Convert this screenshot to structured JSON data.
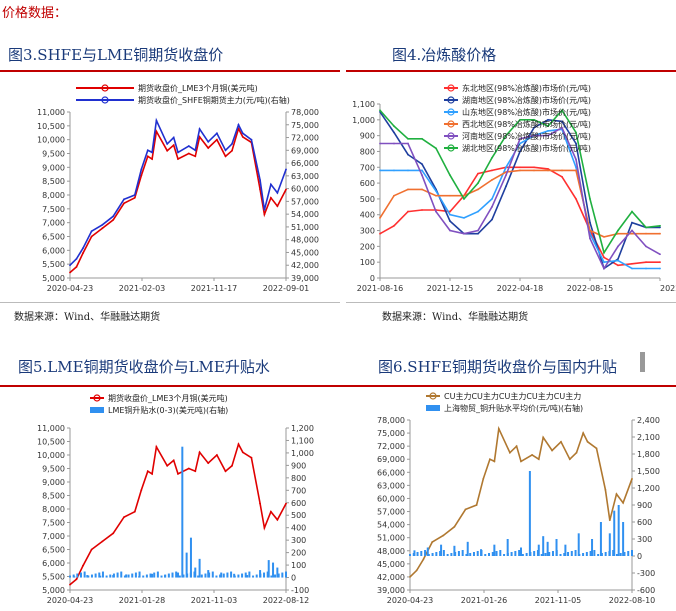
{
  "header": "价格数据：",
  "figures": [
    {
      "title": "图3.SHFE与LME铜期货收盘价",
      "source": "数据来源：Wind、华融融达期货"
    },
    {
      "title": "图4.冶炼酸价格",
      "source": "数据来源：Wind、华融融达期货"
    },
    {
      "title": "图5.LME铜期货收盘价与LME升贴水",
      "source": ""
    },
    {
      "title": "图6.SHFE铜期货收盘价与国内升贴",
      "source": ""
    }
  ],
  "chart_data": [
    {
      "type": "line",
      "x_ticks": [
        "2020-04-23",
        "2021-02-03",
        "2021-11-17",
        "2022-09-01"
      ],
      "y_ticks": [
        "5,000",
        "5,500",
        "6,000",
        "6,500",
        "7,000",
        "7,500",
        "8,000",
        "8,500",
        "9,000",
        "9,500",
        "10,000",
        "10,500",
        "11,000"
      ],
      "y2_ticks": [
        "39,000",
        "42,000",
        "45,000",
        "48,000",
        "51,000",
        "54,000",
        "57,000",
        "60,000",
        "63,000",
        "66,000",
        "69,000",
        "72,000",
        "75,000",
        "78,000"
      ],
      "ylim": [
        5000,
        11000
      ],
      "y2lim": [
        39000,
        78000
      ],
      "legend_position": "top-left",
      "colors": {
        "lme": "#e00000",
        "shfe": "#2030d0"
      },
      "series": [
        {
          "name": "期货收盘价_LME3个月铜(美元吨)",
          "color": "#e00000",
          "axis": "left",
          "x": [
            0,
            0.03,
            0.06,
            0.1,
            0.15,
            0.2,
            0.25,
            0.3,
            0.33,
            0.36,
            0.38,
            0.4,
            0.45,
            0.48,
            0.5,
            0.55,
            0.58,
            0.6,
            0.64,
            0.68,
            0.72,
            0.75,
            0.78,
            0.8,
            0.84,
            0.88,
            0.9,
            0.93,
            0.96,
            1.0
          ],
          "values": [
            5200,
            5400,
            5900,
            6500,
            6800,
            7100,
            7700,
            7900,
            8700,
            9400,
            9300,
            10300,
            9600,
            9800,
            9300,
            9500,
            9400,
            10100,
            9700,
            10000,
            9400,
            9600,
            10400,
            10100,
            9900,
            8200,
            7300,
            7900,
            7600,
            8200
          ]
        },
        {
          "name": "期货收盘价_SHFE铜期货主力(元/吨)(右轴)",
          "color": "#2030d0",
          "axis": "right",
          "x": [
            0,
            0.03,
            0.06,
            0.1,
            0.15,
            0.2,
            0.25,
            0.3,
            0.33,
            0.36,
            0.38,
            0.4,
            0.45,
            0.48,
            0.5,
            0.55,
            0.58,
            0.6,
            0.64,
            0.68,
            0.72,
            0.75,
            0.78,
            0.8,
            0.84,
            0.88,
            0.9,
            0.93,
            0.96,
            1.0
          ],
          "values": [
            42000,
            43500,
            46000,
            50000,
            51500,
            53500,
            57500,
            58500,
            64500,
            69000,
            68500,
            76000,
            70500,
            72000,
            68500,
            70000,
            69000,
            74000,
            71000,
            73000,
            69000,
            70500,
            75000,
            73000,
            71500,
            62000,
            55000,
            61000,
            59000,
            64500
          ]
        }
      ]
    },
    {
      "type": "line",
      "x_ticks": [
        "2021-08-16",
        "2021-12-15",
        "2022-04-18",
        "2022-08-15",
        "2022-12"
      ],
      "y_ticks": [
        "0",
        "100",
        "200",
        "300",
        "400",
        "500",
        "600",
        "700",
        "800",
        "900",
        "1,000",
        "1,100"
      ],
      "ylim": [
        0,
        1100
      ],
      "legend_position": "top-center",
      "series": [
        {
          "name": "东北地区(98%冶炼酸)市场价(元/吨)",
          "color": "#ff3030",
          "x": [
            0,
            0.05,
            0.1,
            0.15,
            0.2,
            0.25,
            0.3,
            0.35,
            0.4,
            0.45,
            0.5,
            0.55,
            0.6,
            0.65,
            0.7,
            0.75,
            0.8,
            0.85,
            0.9,
            0.95,
            1.0
          ],
          "values": [
            280,
            330,
            420,
            430,
            430,
            420,
            520,
            660,
            680,
            700,
            700,
            700,
            690,
            640,
            500,
            300,
            130,
            80,
            90,
            100,
            100
          ]
        },
        {
          "name": "湖南地区(98%冶炼酸)市场价(元/吨)",
          "color": "#1f3f9f",
          "x": [
            0,
            0.05,
            0.1,
            0.15,
            0.2,
            0.25,
            0.3,
            0.35,
            0.4,
            0.45,
            0.5,
            0.55,
            0.6,
            0.65,
            0.7,
            0.75,
            0.8,
            0.85,
            0.9,
            0.95,
            1.0
          ],
          "values": [
            1050,
            920,
            780,
            720,
            560,
            360,
            280,
            280,
            370,
            580,
            800,
            950,
            1000,
            990,
            850,
            350,
            60,
            120,
            350,
            320,
            320
          ]
        },
        {
          "name": "山东地区(98%冶炼酸)市场价(元/吨)",
          "color": "#30a0ff",
          "x": [
            0,
            0.05,
            0.1,
            0.15,
            0.2,
            0.25,
            0.3,
            0.35,
            0.4,
            0.45,
            0.5,
            0.55,
            0.6,
            0.65,
            0.7,
            0.75,
            0.8,
            0.85,
            0.9,
            0.95,
            1.0
          ],
          "values": [
            680,
            680,
            680,
            680,
            550,
            400,
            380,
            420,
            500,
            700,
            850,
            900,
            930,
            940,
            700,
            280,
            100,
            110,
            60,
            60,
            60
          ]
        },
        {
          "name": "西北地区(98%冶炼酸)市场价(元/吨)",
          "color": "#f07030",
          "x": [
            0,
            0.05,
            0.1,
            0.15,
            0.2,
            0.25,
            0.3,
            0.35,
            0.4,
            0.45,
            0.5,
            0.55,
            0.6,
            0.65,
            0.7,
            0.75,
            0.8,
            0.85,
            0.9,
            0.95,
            1.0
          ],
          "values": [
            380,
            520,
            560,
            560,
            520,
            520,
            520,
            560,
            620,
            670,
            680,
            680,
            680,
            680,
            680,
            300,
            260,
            280,
            280,
            280,
            280
          ]
        },
        {
          "name": "河南地区(98%冶炼酸)市场价(元/吨)",
          "color": "#8050c0",
          "x": [
            0,
            0.05,
            0.1,
            0.15,
            0.2,
            0.25,
            0.3,
            0.35,
            0.4,
            0.45,
            0.5,
            0.55,
            0.6,
            0.65,
            0.7,
            0.75,
            0.8,
            0.85,
            0.9,
            0.95,
            1.0
          ],
          "values": [
            850,
            850,
            850,
            650,
            420,
            300,
            280,
            300,
            450,
            650,
            880,
            900,
            900,
            950,
            750,
            250,
            60,
            200,
            300,
            200,
            150
          ]
        },
        {
          "name": "湖北地区(98%冶炼酸)市场价(元/吨)",
          "color": "#20b040",
          "x": [
            0,
            0.05,
            0.1,
            0.15,
            0.2,
            0.25,
            0.3,
            0.35,
            0.4,
            0.45,
            0.5,
            0.55,
            0.6,
            0.65,
            0.7,
            0.75,
            0.8,
            0.85,
            0.9,
            0.95,
            1.0
          ],
          "values": [
            1060,
            960,
            880,
            880,
            820,
            650,
            500,
            600,
            760,
            900,
            1000,
            1000,
            960,
            1060,
            920,
            500,
            160,
            300,
            420,
            320,
            330
          ]
        }
      ]
    },
    {
      "type": "line",
      "x_ticks": [
        "2020-04-23",
        "2021-01-28",
        "2021-11-03",
        "2022-08-12"
      ],
      "y_ticks": [
        "5,000",
        "5,500",
        "6,000",
        "6,500",
        "7,000",
        "7,500",
        "8,000",
        "8,500",
        "9,000",
        "9,500",
        "10,000",
        "10,500",
        "11,000"
      ],
      "y2_ticks": [
        "-100",
        "0",
        "100",
        "200",
        "300",
        "400",
        "500",
        "600",
        "700",
        "800",
        "900",
        "1,000",
        "1,100",
        "1,200"
      ],
      "ylim": [
        5000,
        11000
      ],
      "y2lim": [
        -100,
        1200
      ],
      "legend_position": "top-left",
      "series": [
        {
          "name": "期货收盘价_LME3个月铜(美元吨)",
          "color": "#e00000",
          "kind": "line",
          "axis": "left",
          "x": [
            0,
            0.03,
            0.06,
            0.1,
            0.15,
            0.2,
            0.25,
            0.3,
            0.33,
            0.36,
            0.38,
            0.4,
            0.45,
            0.48,
            0.5,
            0.55,
            0.58,
            0.6,
            0.64,
            0.68,
            0.72,
            0.75,
            0.78,
            0.8,
            0.84,
            0.88,
            0.9,
            0.93,
            0.96,
            1.0
          ],
          "values": [
            5200,
            5400,
            5900,
            6500,
            6800,
            7100,
            7700,
            7900,
            8700,
            9400,
            9300,
            10300,
            9600,
            9800,
            9300,
            9500,
            9400,
            10100,
            9700,
            10000,
            9400,
            9600,
            10400,
            10100,
            9900,
            8200,
            7300,
            7900,
            7600,
            8200
          ]
        },
        {
          "name": "LME铜升贴水(0-3)(美元吨)(右轴)",
          "color": "#3090f0",
          "kind": "bar",
          "axis": "right",
          "x": [
            0.02,
            0.08,
            0.14,
            0.2,
            0.26,
            0.32,
            0.38,
            0.44,
            0.5,
            0.52,
            0.54,
            0.56,
            0.58,
            0.6,
            0.64,
            0.7,
            0.76,
            0.82,
            0.88,
            0.92,
            0.94,
            0.96
          ],
          "values": [
            10,
            20,
            15,
            20,
            25,
            10,
            30,
            20,
            40,
            1050,
            200,
            320,
            80,
            150,
            60,
            40,
            30,
            20,
            60,
            140,
            120,
            80
          ]
        }
      ]
    },
    {
      "type": "line",
      "x_ticks": [
        "2020-04-23",
        "2021-01-26",
        "2021-11-05",
        "2022-08-10"
      ],
      "y_ticks": [
        "39,000",
        "42,000",
        "45,000",
        "48,000",
        "51,000",
        "54,000",
        "57,000",
        "60,000",
        "63,000",
        "66,000",
        "69,000",
        "72,000",
        "75,000",
        "78,000"
      ],
      "y2_ticks": [
        "-600",
        "-300",
        "0",
        "300",
        "600",
        "900",
        "1,200",
        "1,500",
        "1,800",
        "2,100",
        "2,400"
      ],
      "ylim": [
        39000,
        78000
      ],
      "y2lim": [
        -600,
        2400
      ],
      "legend_position": "top-left",
      "series": [
        {
          "name": "CU主力CU主力CU主力CU主力CU主力",
          "color": "#b07830",
          "kind": "line",
          "axis": "left",
          "x": [
            0,
            0.03,
            0.06,
            0.1,
            0.15,
            0.2,
            0.25,
            0.3,
            0.33,
            0.36,
            0.38,
            0.4,
            0.45,
            0.48,
            0.5,
            0.55,
            0.58,
            0.6,
            0.64,
            0.68,
            0.72,
            0.75,
            0.78,
            0.8,
            0.84,
            0.88,
            0.9,
            0.93,
            0.96,
            1.0
          ],
          "values": [
            42000,
            43500,
            46000,
            50000,
            51500,
            53500,
            57500,
            58500,
            64500,
            69000,
            68500,
            76000,
            70500,
            72000,
            68500,
            70000,
            69000,
            74000,
            71000,
            73000,
            69000,
            70500,
            75000,
            73000,
            71500,
            62000,
            55000,
            61000,
            59000,
            64500
          ]
        },
        {
          "name": "上海物贸_铜升贴水平均价(元/吨)(右轴)",
          "color": "#3090f0",
          "kind": "bar",
          "axis": "right",
          "x": [
            0.02,
            0.08,
            0.14,
            0.2,
            0.26,
            0.32,
            0.38,
            0.44,
            0.5,
            0.54,
            0.58,
            0.6,
            0.62,
            0.66,
            0.7,
            0.76,
            0.82,
            0.86,
            0.9,
            0.92,
            0.94,
            0.96
          ],
          "values": [
            100,
            150,
            200,
            180,
            250,
            120,
            200,
            300,
            150,
            1500,
            200,
            350,
            250,
            300,
            200,
            400,
            300,
            600,
            400,
            800,
            900,
            600
          ]
        }
      ]
    }
  ]
}
